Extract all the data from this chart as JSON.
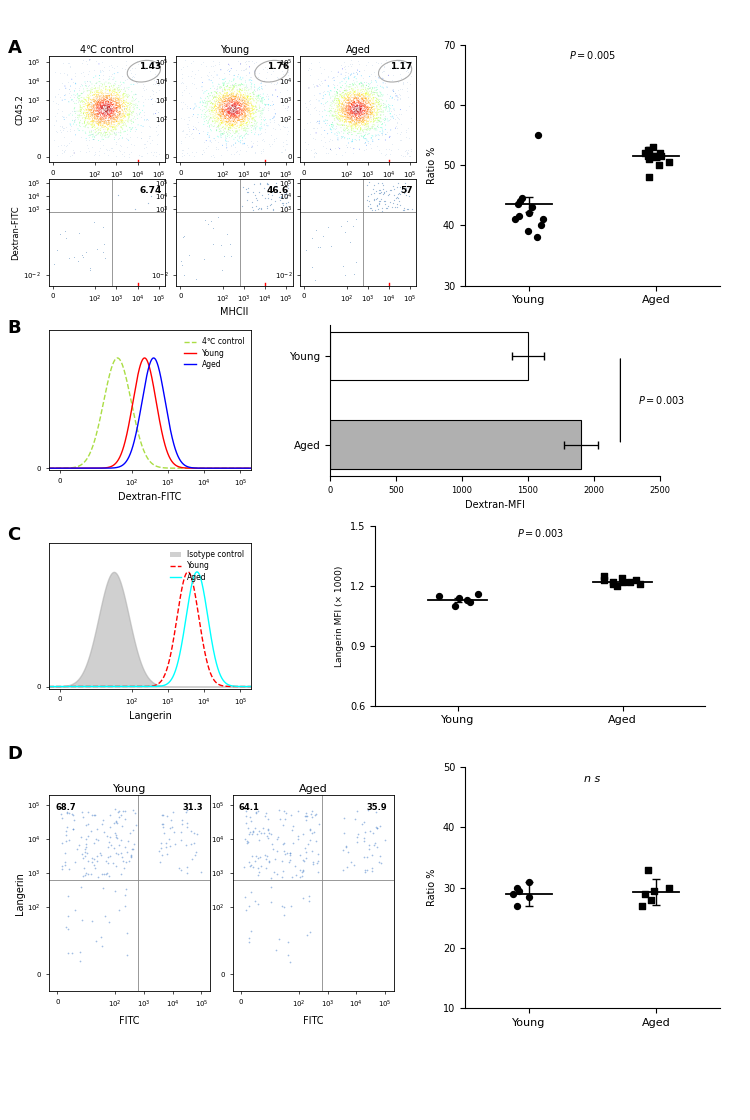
{
  "panel_A": {
    "title_cols": [
      "4℃ control",
      "Young",
      "Aged"
    ],
    "scatter_labels_top": [
      "1.43",
      "1.76",
      "1.17"
    ],
    "scatter_labels_bot": [
      "6.74",
      "46.6",
      "57"
    ],
    "ylabel_top": "CD45.2",
    "ylabel_bot": "Dextran-FITC",
    "xlabel_bot": "MHCII",
    "scatter_young": [
      44.0,
      40.0,
      41.5,
      41.0,
      39.0,
      43.0,
      55.0,
      42.0,
      44.5,
      43.5,
      41.0,
      38.0
    ],
    "scatter_aged": [
      51.5,
      52.0,
      50.5,
      51.0,
      53.0,
      52.5,
      51.5,
      50.0,
      52.0,
      51.5,
      48.0,
      52.5
    ],
    "young_mean": 43.5,
    "young_sem": 1.3,
    "aged_mean": 51.5,
    "aged_sem": 0.6,
    "ylabel_scatter": "Ratio %",
    "ylim_scatter": [
      30,
      70
    ],
    "yticks_scatter": [
      30,
      40,
      50,
      60,
      70
    ],
    "pval_A": "P=0.005"
  },
  "panel_B": {
    "aged_bar": 1900,
    "aged_err": 130,
    "young_bar": 1500,
    "young_err": 120,
    "xlabel": "Dextran-MFI",
    "xlim": [
      0,
      2500
    ],
    "xticks": [
      0,
      500,
      1000,
      1500,
      2000,
      2500
    ],
    "pval_B": "P=0.003",
    "bar_color_aged": "#b0b0b0",
    "bar_color_young": "#ffffff"
  },
  "panel_C": {
    "scatter_young_C": [
      1.15,
      1.12,
      1.1,
      1.13,
      1.16,
      1.14
    ],
    "scatter_aged_C": [
      1.22,
      1.23,
      1.21,
      1.24,
      1.22,
      1.23,
      1.2,
      1.25,
      1.22,
      1.21
    ],
    "young_mean_C": 1.13,
    "young_sem_C": 0.012,
    "aged_mean_C": 1.22,
    "aged_sem_C": 0.008,
    "ylabel_C": "Langerin MFI (× 1000)",
    "ylim_C": [
      0.6,
      1.5
    ],
    "yticks_C": [
      0.6,
      0.9,
      1.2,
      1.5
    ],
    "pval_C": "P=0.003"
  },
  "panel_D": {
    "young_TL": "68.7",
    "young_TR": "31.3",
    "aged_TL": "64.1",
    "aged_TR": "35.9",
    "xlabel_D": "FITC",
    "ylabel_D": "Langerin",
    "scatter_young_D": [
      29.0,
      31.0,
      28.5,
      30.0,
      27.0,
      29.5
    ],
    "scatter_aged_D": [
      29.5,
      33.0,
      27.0,
      28.0,
      29.0,
      30.0
    ],
    "young_mean_D": 29.0,
    "young_sem_D": 2.0,
    "aged_mean_D": 29.3,
    "aged_sem_D": 2.2,
    "ylabel_scatter_D": "Ratio %",
    "ylim_D": [
      10,
      50
    ],
    "yticks_D": [
      10,
      20,
      30,
      40,
      50
    ],
    "pval_D": "n s"
  }
}
